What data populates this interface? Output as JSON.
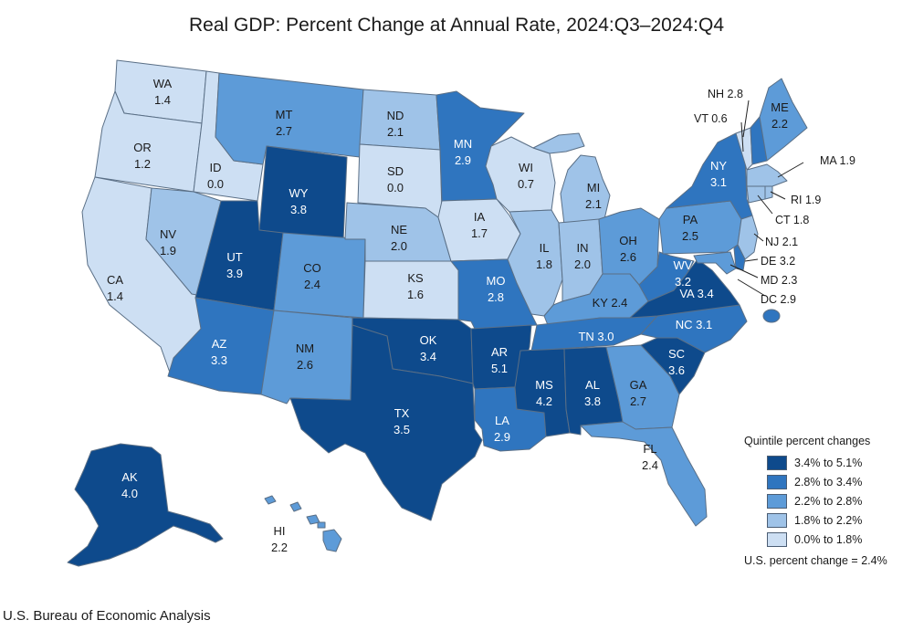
{
  "title": "Real GDP: Percent Change at Annual Rate, 2024:Q3–2024:Q4",
  "source": "U.S. Bureau of Economic Analysis",
  "legend": {
    "title": "Quintile percent changes",
    "items": [
      {
        "label": "3.4% to 5.1%",
        "color": "#0e4a8c"
      },
      {
        "label": "2.8% to 3.4%",
        "color": "#2f75bf"
      },
      {
        "label": "2.2% to 2.8%",
        "color": "#5d9bd8"
      },
      {
        "label": "1.8% to 2.2%",
        "color": "#9fc3e8"
      },
      {
        "label": "0.0% to 1.8%",
        "color": "#cddff3"
      }
    ],
    "note": "U.S. percent change = 2.4%"
  },
  "states": {
    "WA": {
      "value": "1.4",
      "quintile": 4
    },
    "OR": {
      "value": "1.2",
      "quintile": 4
    },
    "CA": {
      "value": "1.4",
      "quintile": 4
    },
    "ID": {
      "value": "0.0",
      "quintile": 4
    },
    "NV": {
      "value": "1.9",
      "quintile": 3
    },
    "MT": {
      "value": "2.7",
      "quintile": 2
    },
    "WY": {
      "value": "3.8",
      "quintile": 0
    },
    "UT": {
      "value": "3.9",
      "quintile": 0
    },
    "AZ": {
      "value": "3.3",
      "quintile": 1
    },
    "CO": {
      "value": "2.4",
      "quintile": 2
    },
    "NM": {
      "value": "2.6",
      "quintile": 2
    },
    "ND": {
      "value": "2.1",
      "quintile": 3
    },
    "SD": {
      "value": "0.0",
      "quintile": 4
    },
    "NE": {
      "value": "2.0",
      "quintile": 3
    },
    "KS": {
      "value": "1.6",
      "quintile": 4
    },
    "OK": {
      "value": "3.4",
      "quintile": 0
    },
    "TX": {
      "value": "3.5",
      "quintile": 0
    },
    "MN": {
      "value": "2.9",
      "quintile": 1
    },
    "IA": {
      "value": "1.7",
      "quintile": 4
    },
    "MO": {
      "value": "2.8",
      "quintile": 1
    },
    "AR": {
      "value": "5.1",
      "quintile": 0
    },
    "LA": {
      "value": "2.9",
      "quintile": 1
    },
    "WI": {
      "value": "0.7",
      "quintile": 4
    },
    "IL": {
      "value": "1.8",
      "quintile": 3
    },
    "MI": {
      "value": "2.1",
      "quintile": 3
    },
    "IN": {
      "value": "2.0",
      "quintile": 3
    },
    "OH": {
      "value": "2.6",
      "quintile": 2
    },
    "KY": {
      "value": "2.4",
      "quintile": 2
    },
    "TN": {
      "value": "3.0",
      "quintile": 1
    },
    "MS": {
      "value": "4.2",
      "quintile": 0
    },
    "AL": {
      "value": "3.8",
      "quintile": 0
    },
    "GA": {
      "value": "2.7",
      "quintile": 2
    },
    "FL": {
      "value": "2.4",
      "quintile": 2
    },
    "SC": {
      "value": "3.6",
      "quintile": 0
    },
    "NC": {
      "value": "3.1",
      "quintile": 1
    },
    "VA": {
      "value": "3.4",
      "quintile": 0
    },
    "WV": {
      "value": "3.2",
      "quintile": 1
    },
    "PA": {
      "value": "2.5",
      "quintile": 2
    },
    "NY": {
      "value": "3.1",
      "quintile": 1
    },
    "ME": {
      "value": "2.2",
      "quintile": 2
    },
    "NH": {
      "value": "2.8",
      "quintile": 1
    },
    "VT": {
      "value": "0.6",
      "quintile": 4
    },
    "MA": {
      "value": "1.9",
      "quintile": 3
    },
    "RI": {
      "value": "1.9",
      "quintile": 3
    },
    "CT": {
      "value": "1.8",
      "quintile": 3
    },
    "NJ": {
      "value": "2.1",
      "quintile": 3
    },
    "DE": {
      "value": "3.2",
      "quintile": 1
    },
    "MD": {
      "value": "2.3",
      "quintile": 2
    },
    "DC": {
      "value": "2.9",
      "quintile": 1
    },
    "AK": {
      "value": "4.0",
      "quintile": 0
    },
    "HI": {
      "value": "2.2",
      "quintile": 2
    }
  }
}
